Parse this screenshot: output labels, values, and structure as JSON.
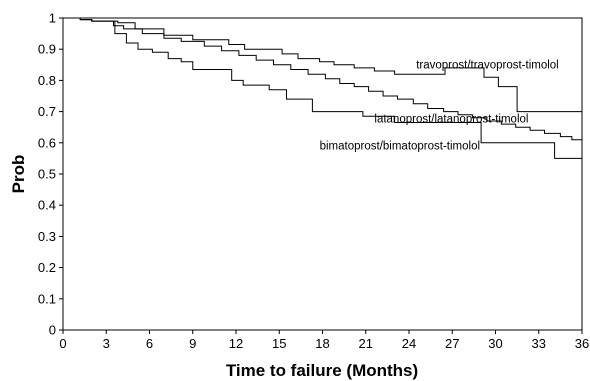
{
  "chart_data": {
    "type": "line",
    "step": true,
    "xlabel": "Time to failure (Months)",
    "ylabel": "Prob",
    "xlim": [
      0,
      36
    ],
    "ylim": [
      0,
      1
    ],
    "xticks": [
      0,
      3,
      6,
      9,
      12,
      15,
      18,
      21,
      24,
      27,
      30,
      33,
      36
    ],
    "yticks": [
      0,
      0.1,
      0.2,
      0.3,
      0.4,
      0.5,
      0.6,
      0.7,
      0.8,
      0.9,
      1
    ],
    "ytick_labels": [
      "0",
      "0.1",
      "0.2",
      "0.3",
      "0.4",
      "0.5",
      "0.6",
      "0.7",
      "0.8",
      "0.9",
      "1"
    ],
    "grid": false,
    "legend": "none",
    "color": "#000000",
    "series": [
      {
        "name": "travoprost/travoprost-timolol",
        "x": [
          0,
          1.2,
          2,
          3.8,
          5,
          7,
          9,
          11.5,
          12.6,
          15.2,
          16.3,
          17.8,
          18.8,
          20.2,
          21.6,
          23,
          26.5,
          29.2,
          30.2,
          31.5,
          36
        ],
        "y": [
          1,
          0.995,
          0.99,
          0.985,
          0.965,
          0.945,
          0.93,
          0.915,
          0.9,
          0.885,
          0.87,
          0.86,
          0.85,
          0.84,
          0.83,
          0.82,
          0.84,
          0.81,
          0.78,
          0.7,
          0.7
        ]
      },
      {
        "name": "latanoprost/latanoprost-timolol",
        "x": [
          0,
          1.2,
          2,
          3.5,
          4.2,
          5.5,
          7,
          8.2,
          9.8,
          11,
          12.2,
          13.4,
          14.6,
          15.8,
          17,
          18.2,
          19.2,
          20.2,
          21.2,
          22.2,
          23.2,
          24.3,
          25.3,
          26.4,
          27.4,
          28.4,
          29.4,
          30.4,
          31.4,
          32.4,
          33.4,
          34.5,
          35.3,
          36
        ],
        "y": [
          1,
          0.995,
          0.99,
          0.975,
          0.965,
          0.95,
          0.935,
          0.925,
          0.91,
          0.895,
          0.88,
          0.865,
          0.85,
          0.835,
          0.82,
          0.805,
          0.79,
          0.78,
          0.765,
          0.75,
          0.74,
          0.725,
          0.71,
          0.7,
          0.69,
          0.68,
          0.67,
          0.66,
          0.65,
          0.64,
          0.63,
          0.62,
          0.61,
          0.61
        ]
      },
      {
        "name": "bimatoprost/bimatoprost-timolol",
        "x": [
          0,
          1.2,
          2,
          3.6,
          4.4,
          5.2,
          6.2,
          7.3,
          8.2,
          9,
          11.7,
          12.5,
          14.3,
          15.5,
          17.3,
          20.8,
          23,
          29,
          33.6,
          34.1,
          36
        ],
        "y": [
          1,
          0.995,
          0.99,
          0.95,
          0.92,
          0.9,
          0.89,
          0.87,
          0.86,
          0.835,
          0.8,
          0.785,
          0.77,
          0.74,
          0.7,
          0.685,
          0.665,
          0.6,
          0.6,
          0.55,
          0.55
        ]
      }
    ],
    "annotations": [
      {
        "text": "travoprost/travoprost-timolol",
        "x": 24.5,
        "y": 0.838,
        "series": "travoprost/travoprost-timolol"
      },
      {
        "text": "latanoprost/latanoprost-timolol",
        "x": 21.6,
        "y": 0.665,
        "series": "latanoprost/latanoprost-timolol"
      },
      {
        "text": "bimatoprost/bimatoprost-timolol",
        "x": 17.8,
        "y": 0.578,
        "series": "bimatoprost/bimatoprost-timolol"
      }
    ]
  }
}
